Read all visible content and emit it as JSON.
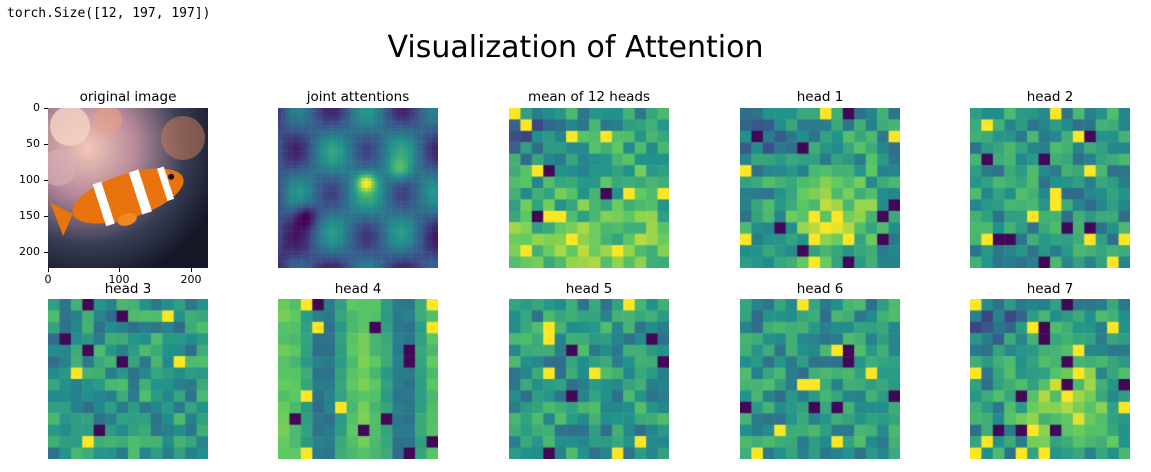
{
  "notebook": {
    "output_text": "torch.Size([12, 197, 197])"
  },
  "figure": {
    "title": "Visualization of Attention",
    "colormap": [
      "#440154",
      "#3b528b",
      "#21918c",
      "#5ec962",
      "#fde725"
    ],
    "original_image": {
      "label": "original image",
      "y_ticks": [
        "0",
        "50",
        "100",
        "150",
        "200"
      ],
      "x_ticks": [
        "0",
        "100",
        "200"
      ]
    },
    "panels": [
      {
        "label": "joint attentions",
        "kind": "smooth"
      },
      {
        "label": "mean of 12 heads",
        "kind": "grid"
      },
      {
        "label": "head 1",
        "kind": "grid"
      },
      {
        "label": "head 2",
        "kind": "grid"
      },
      {
        "label": "head 3",
        "kind": "grid"
      },
      {
        "label": "head 4",
        "kind": "grid"
      },
      {
        "label": "head 5",
        "kind": "grid"
      },
      {
        "label": "head 6",
        "kind": "grid"
      },
      {
        "label": "head 7",
        "kind": "grid"
      }
    ]
  }
}
